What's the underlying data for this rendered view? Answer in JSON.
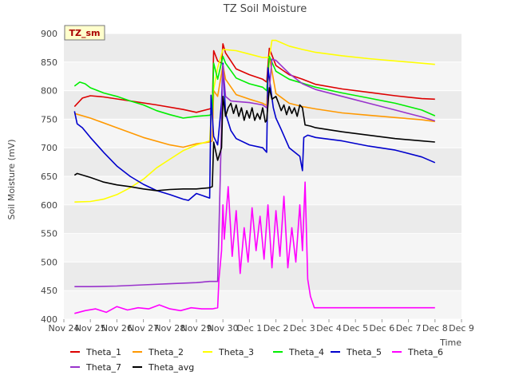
{
  "chart_data": {
    "type": "line",
    "title": "TZ Soil Moisture",
    "xlabel": "Time",
    "ylabel": "Soil Moisture (mV)",
    "site_badge": "TZ_sm",
    "xlim": [
      0,
      15
    ],
    "ylim": [
      400,
      900
    ],
    "x_tick_values": [
      0,
      1,
      2,
      3,
      4,
      5,
      6,
      7,
      8,
      9,
      10,
      11,
      12,
      13,
      14,
      15
    ],
    "x_tick_labels": [
      "Nov 24",
      "Nov 25",
      "Nov 26",
      "Nov 27",
      "Nov 28",
      "Nov 29",
      "Nov 30",
      "Dec 1",
      "Dec 2",
      "Dec 3",
      "Dec 4",
      "Dec 5",
      "Dec 6",
      "Dec 7",
      "Dec 8",
      "Dec 9"
    ],
    "y_ticks": [
      400,
      450,
      500,
      550,
      600,
      650,
      700,
      750,
      800,
      850,
      900
    ],
    "grid": true,
    "band_colors": [
      "#ebebeb",
      "#f5f5f5"
    ],
    "legend_position": "bottom",
    "series": [
      {
        "name": "Theta_1",
        "color": "#dd0000",
        "x": [
          0.4,
          0.7,
          1.0,
          1.5,
          2.5,
          3.5,
          4.5,
          5.0,
          5.5,
          5.6,
          5.65,
          5.8,
          5.95,
          6.0,
          6.1,
          6.5,
          7.0,
          7.5,
          7.65,
          7.75,
          8.0,
          8.5,
          9.0,
          9.5,
          10.5,
          11.5,
          12.5,
          13.5,
          14.0
        ],
        "y": [
          772,
          787,
          791,
          789,
          782,
          775,
          767,
          762,
          768,
          770,
          870,
          852,
          848,
          882,
          866,
          838,
          828,
          820,
          815,
          874,
          844,
          828,
          820,
          811,
          803,
          797,
          791,
          786,
          785
        ]
      },
      {
        "name": "Theta_2",
        "color": "#ff9900",
        "x": [
          0.4,
          1.0,
          2.0,
          3.0,
          4.0,
          4.5,
          5.0,
          5.5,
          5.6,
          5.65,
          5.8,
          6.0,
          6.1,
          6.5,
          7.0,
          7.5,
          7.65,
          7.75,
          8.0,
          8.5,
          9.0,
          9.5,
          10.5,
          11.5,
          12.5,
          13.5,
          14.0
        ],
        "y": [
          760,
          752,
          735,
          718,
          705,
          701,
          707,
          710,
          712,
          800,
          790,
          845,
          820,
          793,
          785,
          778,
          774,
          860,
          795,
          778,
          772,
          768,
          761,
          757,
          753,
          749,
          746
        ]
      },
      {
        "name": "Theta_3",
        "color": "#ffff00",
        "x": [
          0.4,
          1.0,
          1.5,
          2.0,
          2.5,
          3.0,
          3.5,
          4.0,
          4.5,
          5.0,
          5.5,
          5.6,
          5.8,
          6.0,
          6.5,
          7.0,
          7.5,
          7.75,
          7.85,
          8.0,
          8.5,
          9.0,
          9.5,
          10.5,
          11.5,
          12.5,
          13.5,
          14.0
        ],
        "y": [
          605,
          606,
          610,
          618,
          630,
          645,
          665,
          680,
          695,
          705,
          712,
          790,
          840,
          872,
          870,
          864,
          858,
          858,
          888,
          888,
          878,
          872,
          867,
          861,
          856,
          852,
          848,
          846
        ]
      },
      {
        "name": "Theta_4",
        "color": "#00ee00",
        "x": [
          0.4,
          0.6,
          0.8,
          1.0,
          1.5,
          2.0,
          2.5,
          3.0,
          3.5,
          4.0,
          4.5,
          5.0,
          5.5,
          5.6,
          5.65,
          5.8,
          6.0,
          6.1,
          6.5,
          7.0,
          7.5,
          7.65,
          7.75,
          8.0,
          8.5,
          9.0,
          9.5,
          10.5,
          11.5,
          12.5,
          13.5,
          14.0
        ],
        "y": [
          808,
          815,
          812,
          805,
          796,
          790,
          782,
          775,
          765,
          758,
          752,
          755,
          757,
          760,
          848,
          820,
          860,
          848,
          822,
          812,
          806,
          800,
          860,
          834,
          820,
          813,
          806,
          796,
          787,
          778,
          766,
          756
        ]
      },
      {
        "name": "Theta_5",
        "color": "#0000cc",
        "x": [
          0.4,
          0.5,
          0.7,
          1.0,
          1.5,
          2.0,
          2.5,
          3.0,
          3.5,
          4.0,
          4.5,
          4.7,
          5.0,
          5.5,
          5.55,
          5.65,
          5.8,
          5.95,
          6.0,
          6.1,
          6.3,
          6.5,
          7.0,
          7.5,
          7.65,
          7.7,
          7.9,
          8.0,
          8.2,
          8.5,
          8.9,
          9.0,
          9.05,
          9.2,
          9.5,
          10.5,
          11.5,
          12.5,
          13.5,
          14.0
        ],
        "y": [
          764,
          742,
          735,
          718,
          692,
          668,
          650,
          636,
          625,
          618,
          610,
          608,
          620,
          612,
          792,
          720,
          705,
          780,
          848,
          760,
          730,
          716,
          705,
          700,
          692,
          840,
          770,
          752,
          732,
          700,
          685,
          660,
          718,
          722,
          718,
          712,
          703,
          696,
          684,
          674
        ]
      },
      {
        "name": "Theta_6",
        "color": "#ff00ff",
        "x": [
          0.4,
          0.8,
          1.2,
          1.6,
          2.0,
          2.4,
          2.8,
          3.2,
          3.6,
          4.0,
          4.4,
          4.8,
          5.2,
          5.6,
          5.8,
          5.85,
          5.95,
          6.0,
          6.05,
          6.2,
          6.35,
          6.5,
          6.65,
          6.8,
          6.95,
          7.1,
          7.25,
          7.4,
          7.55,
          7.7,
          7.85,
          8.0,
          8.15,
          8.3,
          8.45,
          8.6,
          8.75,
          8.9,
          9.0,
          9.1,
          9.2,
          9.3,
          9.45,
          9.7,
          10.5,
          11.5,
          12.5,
          13.5,
          14.0
        ],
        "y": [
          410,
          415,
          418,
          412,
          422,
          416,
          420,
          418,
          425,
          418,
          415,
          420,
          418,
          418,
          420,
          470,
          520,
          600,
          540,
          632,
          510,
          590,
          480,
          560,
          500,
          595,
          520,
          580,
          505,
          600,
          490,
          590,
          510,
          615,
          490,
          560,
          500,
          600,
          520,
          640,
          470,
          440,
          420,
          420,
          420,
          420,
          420,
          420,
          420
        ]
      },
      {
        "name": "Theta_7",
        "color": "#9933cc",
        "x": [
          0.4,
          1.0,
          2.0,
          3.0,
          4.0,
          5.0,
          5.5,
          5.8,
          5.9,
          6.0,
          6.1,
          6.3,
          6.5,
          7.0,
          7.5,
          7.65,
          7.75,
          7.85,
          8.0,
          8.5,
          9.0,
          9.5,
          10.5,
          11.5,
          12.5,
          13.5,
          14.0
        ],
        "y": [
          457,
          457,
          458,
          460,
          462,
          464,
          466,
          466,
          650,
          845,
          790,
          782,
          781,
          779,
          775,
          770,
          800,
          855,
          853,
          830,
          812,
          802,
          790,
          778,
          766,
          754,
          747
        ]
      },
      {
        "name": "Theta_avg",
        "color": "#000000",
        "x": [
          0.4,
          0.5,
          1.0,
          1.5,
          2.0,
          2.5,
          3.0,
          3.5,
          4.0,
          4.5,
          5.0,
          5.5,
          5.6,
          5.65,
          5.8,
          5.95,
          6.0,
          6.1,
          6.2,
          6.3,
          6.4,
          6.5,
          6.6,
          6.7,
          6.8,
          6.9,
          7.0,
          7.1,
          7.2,
          7.3,
          7.4,
          7.5,
          7.6,
          7.65,
          7.75,
          7.85,
          8.0,
          8.1,
          8.2,
          8.3,
          8.4,
          8.5,
          8.6,
          8.7,
          8.8,
          8.9,
          9.0,
          9.1,
          9.3,
          9.5,
          10.5,
          11.5,
          12.5,
          13.5,
          14.0
        ],
        "y": [
          652,
          655,
          648,
          640,
          635,
          632,
          628,
          625,
          627,
          628,
          628,
          630,
          632,
          710,
          678,
          700,
          790,
          755,
          770,
          778,
          760,
          775,
          755,
          770,
          748,
          765,
          752,
          770,
          748,
          760,
          750,
          770,
          745,
          748,
          805,
          785,
          790,
          778,
          765,
          775,
          758,
          772,
          760,
          770,
          755,
          775,
          770,
          740,
          738,
          735,
          728,
          722,
          716,
          712,
          710
        ]
      }
    ]
  }
}
